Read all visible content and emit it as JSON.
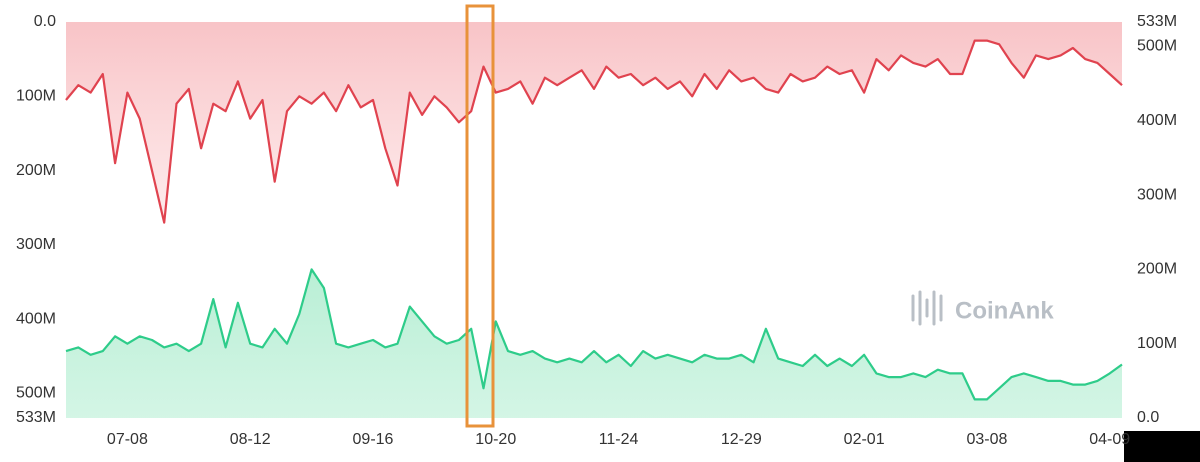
{
  "chart_data": {
    "type": "area",
    "categories": [
      null,
      null,
      null,
      null,
      null,
      "07-08",
      null,
      null,
      null,
      null,
      null,
      null,
      null,
      null,
      null,
      "08-12",
      null,
      null,
      null,
      null,
      null,
      null,
      null,
      null,
      null,
      "09-16",
      null,
      null,
      null,
      null,
      null,
      null,
      null,
      null,
      null,
      "10-20",
      null,
      null,
      null,
      null,
      null,
      null,
      null,
      null,
      null,
      "11-24",
      null,
      null,
      null,
      null,
      null,
      null,
      null,
      null,
      null,
      "12-29",
      null,
      null,
      null,
      null,
      null,
      null,
      null,
      null,
      null,
      "02-01",
      null,
      null,
      null,
      null,
      null,
      null,
      null,
      null,
      null,
      "03-08",
      null,
      null,
      null,
      null,
      null,
      null,
      null,
      null,
      null,
      "04-09",
      null
    ],
    "series": [
      {
        "color": "#e0434f",
        "axis": "y",
        "values": [
          105,
          85,
          95,
          70,
          190,
          95,
          130,
          200,
          270,
          110,
          90,
          170,
          110,
          120,
          80,
          130,
          105,
          215,
          120,
          100,
          110,
          95,
          120,
          85,
          115,
          105,
          170,
          220,
          95,
          125,
          100,
          115,
          135,
          120,
          60,
          95,
          90,
          80,
          110,
          75,
          85,
          75,
          65,
          90,
          60,
          75,
          70,
          85,
          75,
          90,
          80,
          100,
          70,
          90,
          65,
          80,
          75,
          90,
          95,
          70,
          80,
          75,
          60,
          70,
          65,
          95,
          50,
          65,
          45,
          55,
          60,
          50,
          70,
          70,
          25,
          25,
          30,
          55,
          75,
          45,
          50,
          45,
          35,
          50,
          55,
          70,
          85
        ]
      },
      {
        "color": "#2ecc8a",
        "axis": "y2",
        "values": [
          90,
          95,
          85,
          90,
          110,
          100,
          110,
          105,
          95,
          100,
          90,
          100,
          160,
          95,
          155,
          100,
          95,
          120,
          100,
          140,
          200,
          175,
          100,
          95,
          100,
          105,
          95,
          100,
          150,
          130,
          110,
          100,
          105,
          120,
          40,
          130,
          90,
          85,
          90,
          80,
          75,
          80,
          75,
          90,
          75,
          85,
          70,
          90,
          80,
          85,
          80,
          75,
          85,
          80,
          80,
          85,
          75,
          120,
          80,
          75,
          70,
          85,
          70,
          80,
          70,
          85,
          60,
          55,
          55,
          60,
          55,
          65,
          60,
          60,
          25,
          25,
          40,
          55,
          60,
          55,
          50,
          50,
          45,
          45,
          50,
          60,
          72
        ]
      }
    ],
    "ylim": [
      0,
      533
    ],
    "y_inverted": true,
    "yticks": [
      {
        "value": 0,
        "label": "0.0"
      },
      {
        "value": 100,
        "label": "100M"
      },
      {
        "value": 200,
        "label": "200M"
      },
      {
        "value": 300,
        "label": "300M"
      },
      {
        "value": 400,
        "label": "400M"
      },
      {
        "value": 500,
        "label": "500M"
      },
      {
        "value": 533,
        "label": "533M"
      }
    ],
    "y2lim": [
      0,
      533
    ],
    "y2ticks": [
      {
        "value": 0,
        "label": "0.0"
      },
      {
        "value": 100,
        "label": "100M"
      },
      {
        "value": 200,
        "label": "200M"
      },
      {
        "value": 300,
        "label": "300M"
      },
      {
        "value": 400,
        "label": "400M"
      },
      {
        "value": 500,
        "label": "500M"
      },
      {
        "value": 533,
        "label": "533M"
      }
    ],
    "watermark": "CoinAnk"
  }
}
